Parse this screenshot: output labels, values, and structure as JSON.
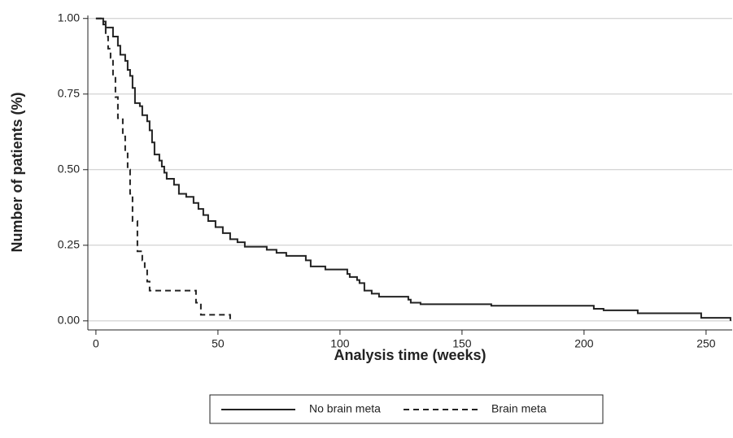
{
  "chart_data": {
    "type": "step",
    "x_label": "Analysis time (weeks)",
    "y_label": "Number of patients (%)",
    "xlim": [
      -3.3,
      260.7
    ],
    "ylim": [
      -0.03,
      1.01
    ],
    "xticks": [
      0,
      50,
      100,
      150,
      200,
      250
    ],
    "yticks": [
      {
        "value": 0,
        "label": "0.00"
      },
      {
        "value": 0.25,
        "label": "0.25"
      },
      {
        "value": 0.5,
        "label": "0.50"
      },
      {
        "value": 0.75,
        "label": "0.75"
      },
      {
        "value": 1,
        "label": "1.00"
      }
    ],
    "grid": true,
    "legend": "bottom",
    "series": [
      {
        "name": "No brain meta",
        "color": "#222222",
        "dash": "solid",
        "x": [
          0,
          3,
          4,
          7,
          9,
          10,
          12,
          13,
          14,
          15,
          16,
          18,
          19,
          21,
          22,
          23,
          24,
          26,
          27,
          28,
          29,
          32,
          34,
          37,
          40,
          42,
          44,
          46,
          49,
          52,
          55,
          58,
          61,
          70,
          74,
          78,
          86,
          88,
          94,
          103,
          104,
          107,
          108,
          110,
          113,
          116,
          128,
          129,
          133,
          162,
          204,
          208,
          222,
          248,
          260
        ],
        "values": [
          1.0,
          0.99,
          0.97,
          0.94,
          0.91,
          0.88,
          0.86,
          0.83,
          0.81,
          0.77,
          0.72,
          0.71,
          0.68,
          0.66,
          0.63,
          0.59,
          0.55,
          0.53,
          0.51,
          0.49,
          0.47,
          0.45,
          0.42,
          0.41,
          0.39,
          0.37,
          0.35,
          0.33,
          0.31,
          0.29,
          0.27,
          0.26,
          0.245,
          0.235,
          0.225,
          0.215,
          0.2,
          0.18,
          0.17,
          0.155,
          0.145,
          0.135,
          0.125,
          0.1,
          0.09,
          0.08,
          0.07,
          0.06,
          0.055,
          0.05,
          0.04,
          0.035,
          0.025,
          0.01,
          0.0
        ]
      },
      {
        "name": "Brain meta",
        "color": "#222222",
        "dash": "dashed",
        "x": [
          0,
          3,
          4,
          5,
          6,
          7,
          8,
          9,
          11,
          12,
          13,
          14,
          15,
          17,
          19,
          20,
          21,
          22,
          41,
          43,
          55
        ],
        "values": [
          1.0,
          0.98,
          0.94,
          0.9,
          0.87,
          0.81,
          0.74,
          0.67,
          0.61,
          0.56,
          0.5,
          0.42,
          0.33,
          0.23,
          0.2,
          0.17,
          0.13,
          0.1,
          0.06,
          0.02,
          0.0
        ]
      }
    ]
  }
}
